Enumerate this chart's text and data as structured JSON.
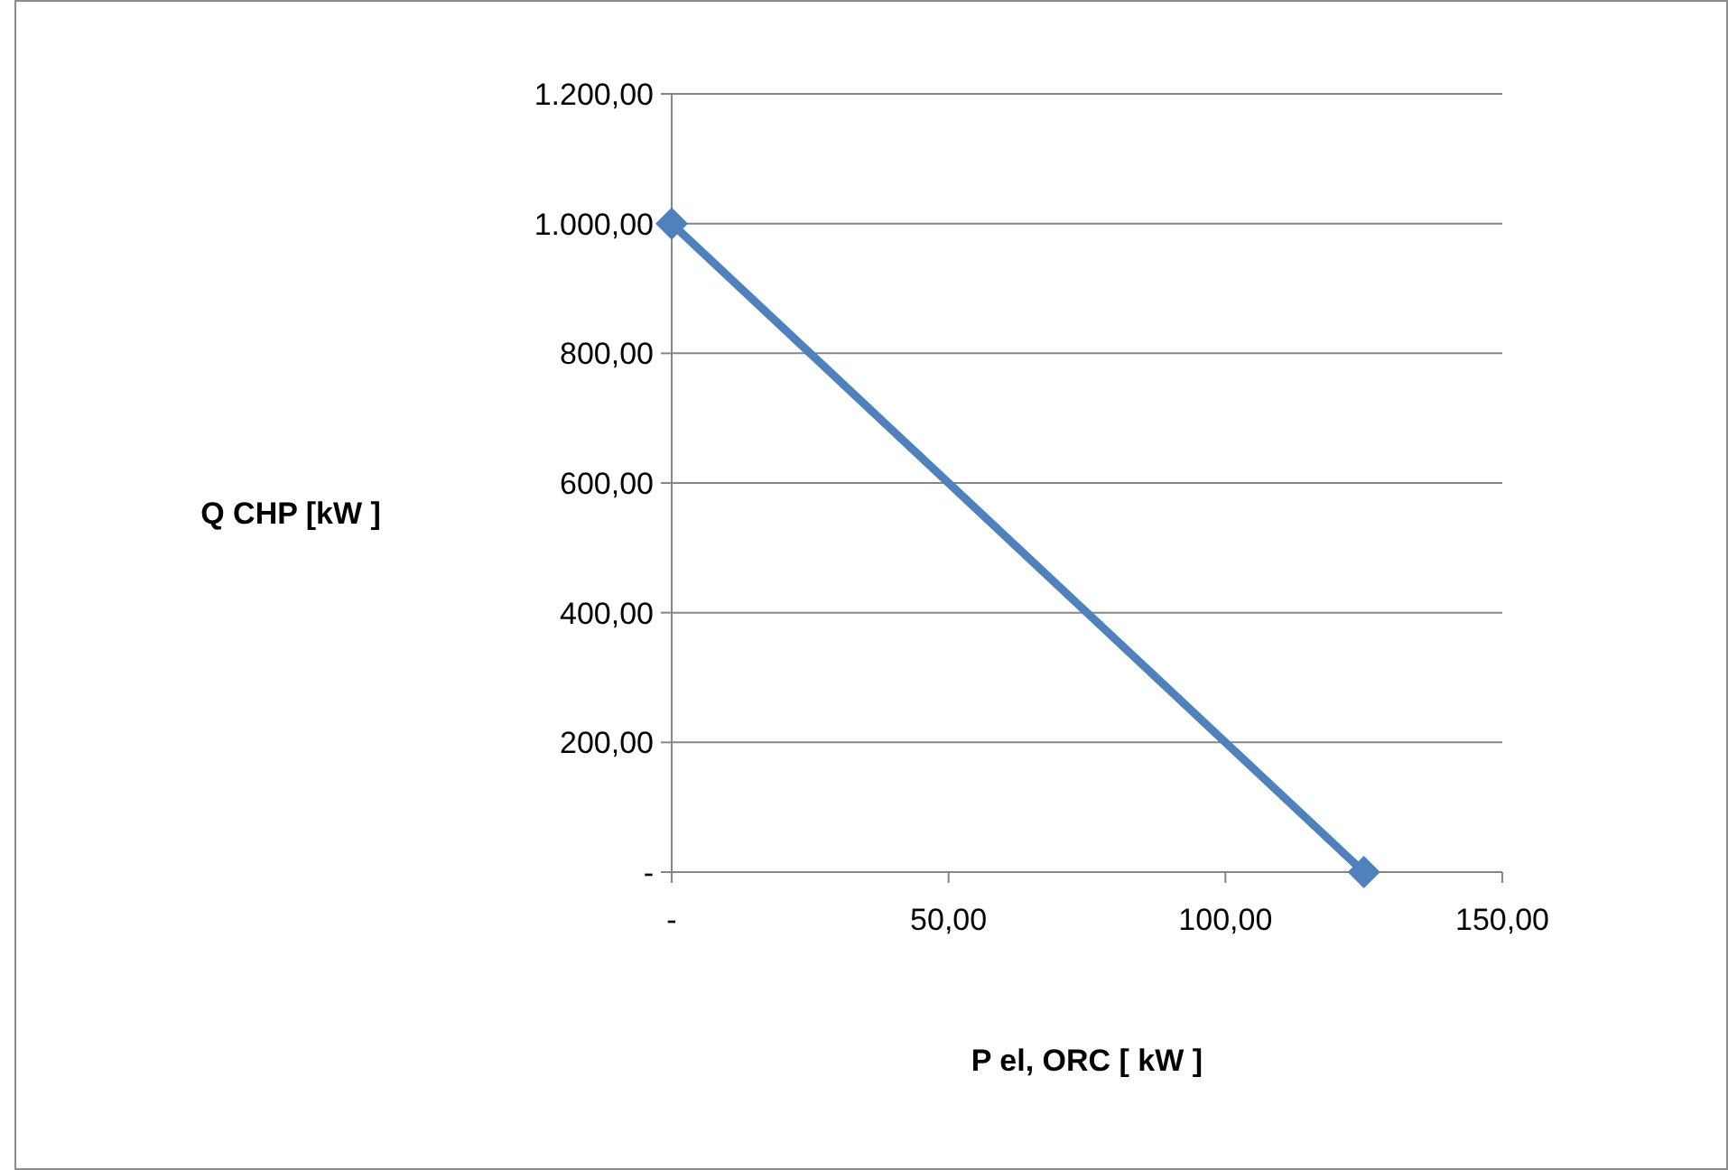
{
  "chart_data": {
    "type": "line",
    "xlabel": "P el, ORC [ kW ]",
    "ylabel": "Q CHP [kW ]",
    "x": [
      0,
      125
    ],
    "series": [
      {
        "color": "#4f81bd",
        "values": [
          1000,
          0
        ]
      }
    ],
    "xlim": [
      0,
      150
    ],
    "xticks": [
      {
        "value": 0,
        "label": "-"
      },
      {
        "value": 50,
        "label": "50,00"
      },
      {
        "value": 100,
        "label": "100,00"
      },
      {
        "value": 150,
        "label": "150,00"
      }
    ],
    "ylim": [
      0,
      1200
    ],
    "yticks": [
      {
        "value": 0,
        "label": "-"
      },
      {
        "value": 200,
        "label": "200,00"
      },
      {
        "value": 400,
        "label": "400,00"
      },
      {
        "value": 600,
        "label": "600,00"
      },
      {
        "value": 800,
        "label": "800,00"
      },
      {
        "value": 1000,
        "label": "1.000,00"
      },
      {
        "value": 1200,
        "label": "1.200,00"
      }
    ],
    "grid": "y",
    "marker": "diamond",
    "line_style": "solid"
  }
}
